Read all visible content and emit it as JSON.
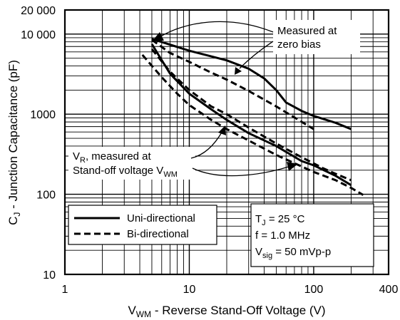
{
  "chart_data": {
    "type": "line",
    "x_scale": "log",
    "y_scale": "log",
    "xlim": [
      1,
      400
    ],
    "ylim": [
      10,
      20000
    ],
    "grid": true,
    "x_ticks": [
      "1",
      "10",
      "100",
      "400"
    ],
    "y_ticks": [
      "10",
      "100",
      "1000",
      "10 000",
      "20 000"
    ],
    "xlabel": {
      "main": "V",
      "sub": "WM",
      "rest": " - Reverse Stand-Off Voltage (V)"
    },
    "ylabel": {
      "main": "C",
      "sub": "J",
      "rest": " - Junction Capacitance (pF)"
    },
    "legend_position": "bottom-left",
    "series": [
      {
        "name": "Uni-directional",
        "style": "solid",
        "group": "zero-bias",
        "points": [
          [
            5,
            8700
          ],
          [
            10,
            6200
          ],
          [
            20,
            4700
          ],
          [
            30,
            3700
          ],
          [
            40,
            2800
          ],
          [
            50,
            2000
          ],
          [
            60,
            1400
          ],
          [
            80,
            1100
          ],
          [
            100,
            950
          ],
          [
            150,
            780
          ],
          [
            200,
            650
          ]
        ]
      },
      {
        "name": "Bi-directional",
        "style": "dashed",
        "group": "zero-bias",
        "points": [
          [
            5,
            8500
          ],
          [
            7,
            5800
          ],
          [
            10,
            4500
          ],
          [
            15,
            3300
          ],
          [
            20,
            2700
          ],
          [
            30,
            1950
          ],
          [
            50,
            1250
          ],
          [
            100,
            650
          ]
        ]
      },
      {
        "name": "Uni-directional",
        "style": "solid",
        "group": "stand-off",
        "points": [
          [
            5,
            7500
          ],
          [
            7,
            3200
          ],
          [
            10,
            1800
          ],
          [
            15,
            1150
          ],
          [
            20,
            850
          ],
          [
            30,
            580
          ],
          [
            50,
            400
          ],
          [
            80,
            260
          ],
          [
            100,
            230
          ],
          [
            150,
            170
          ],
          [
            200,
            130
          ]
        ]
      },
      {
        "name": "Bi-directional",
        "style": "dashed",
        "group": "stand-off",
        "points": [
          [
            5,
            6500
          ],
          [
            7,
            3400
          ],
          [
            10,
            2000
          ],
          [
            15,
            1250
          ],
          [
            20,
            1000
          ],
          [
            30,
            680
          ],
          [
            50,
            430
          ],
          [
            80,
            290
          ],
          [
            120,
            210
          ],
          [
            150,
            180
          ],
          [
            200,
            150
          ]
        ]
      },
      {
        "name": "Bi-directional",
        "style": "dashed",
        "group": "stand-off",
        "points": [
          [
            4.2,
            5500
          ],
          [
            6,
            2900
          ],
          [
            8,
            1800
          ],
          [
            10,
            1300
          ],
          [
            15,
            850
          ],
          [
            20,
            650
          ],
          [
            30,
            470
          ],
          [
            50,
            310
          ],
          [
            100,
            190
          ],
          [
            150,
            150
          ],
          [
            200,
            120
          ],
          [
            250,
            98
          ]
        ]
      }
    ],
    "annotations": {
      "zero_bias": [
        "Measured at",
        "zero bias"
      ],
      "standoff": {
        "line1": "V",
        "line1_sub": "R",
        "line1_rest": ", measured at",
        "line2": "Stand-off voltage V",
        "line2_sub": "WM"
      }
    },
    "legend": [
      {
        "label": "Uni-directional",
        "style": "solid"
      },
      {
        "label": "Bi-directional",
        "style": "dashed"
      }
    ],
    "conditions": [
      {
        "main": "T",
        "sub": "J",
        "rest": " = 25 °C"
      },
      {
        "main": "f = 1.0 MHz",
        "sub": "",
        "rest": ""
      },
      {
        "main": "V",
        "sub": "sig",
        "rest": " = 50 mVp-p"
      }
    ],
    "colors": {
      "line": "#000000",
      "grid": "#000000",
      "background": "#ffffff"
    }
  }
}
